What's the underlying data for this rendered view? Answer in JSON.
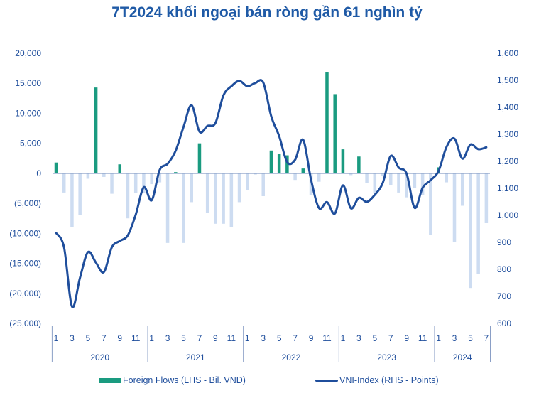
{
  "chart_data": {
    "type": "bar+line",
    "title": "7T2024 khối ngoại bán ròng gần 61 nghìn tỷ",
    "years": [
      "2020",
      "2021",
      "2022",
      "2023",
      "2024"
    ],
    "month_tick_labels": [
      "1",
      "3",
      "5",
      "7",
      "9",
      "11"
    ],
    "left_axis": {
      "ylim": [
        -25000,
        20000
      ],
      "ticks": [
        "20,000",
        "15,000",
        "10,000",
        "5,000",
        "0",
        "(5,000)",
        "(10,000)",
        "(15,000)",
        "(20,000)",
        "(25,000)"
      ]
    },
    "right_axis": {
      "ylim": [
        600,
        1600
      ],
      "ticks": [
        "1,600",
        "1,500",
        "1,400",
        "1,300",
        "1,200",
        "1,100",
        "1,000",
        "900",
        "800",
        "700",
        "600"
      ]
    },
    "x_start": "2020-01",
    "x_end": "2024-07",
    "series": [
      {
        "name": "Foreign Flows (LHS - Bil. VND)",
        "type": "bar",
        "axis": "left",
        "values": [
          1800,
          -3200,
          -8900,
          -6900,
          -900,
          14300,
          -600,
          -3400,
          1500,
          -7500,
          -3300,
          -3300,
          -1800,
          -1500,
          -11600,
          200,
          -11600,
          -4800,
          5000,
          -6600,
          -8400,
          -8400,
          -8900,
          -4800,
          -2800,
          -200,
          -3800,
          3800,
          3200,
          3000,
          -1100,
          800,
          -3600,
          -1400,
          16800,
          13200,
          4000,
          -300,
          2800,
          -1600,
          -3200,
          -400,
          -2000,
          -3200,
          -4000,
          -2400,
          -3600,
          -10200,
          1000,
          -1500,
          -11400,
          -5400,
          -19100,
          -16800,
          -8300
        ]
      },
      {
        "name": "VNI-Index (RHS - Points)",
        "type": "line",
        "axis": "right",
        "values": [
          935,
          881,
          662,
          769,
          864,
          825,
          790,
          882,
          905,
          926,
          1003,
          1104,
          1056,
          1168,
          1191,
          1239,
          1328,
          1408,
          1310,
          1331,
          1342,
          1444,
          1478,
          1498,
          1478,
          1490,
          1492,
          1367,
          1293,
          1197,
          1206,
          1280,
          1132,
          1027,
          1049,
          1007,
          1111,
          1026,
          1065,
          1050,
          1076,
          1120,
          1220,
          1177,
          1154,
          1028,
          1102,
          1130,
          1164,
          1253,
          1284,
          1210,
          1262,
          1245,
          1252
        ]
      }
    ],
    "colors": {
      "positive_bar": "#1a9b80",
      "negative_bar": "#cddcf1",
      "line": "#1f4e9c",
      "axis": "#8a9fc6",
      "text": "#1f4e9c"
    },
    "legend_position": "bottom",
    "grid": false
  }
}
